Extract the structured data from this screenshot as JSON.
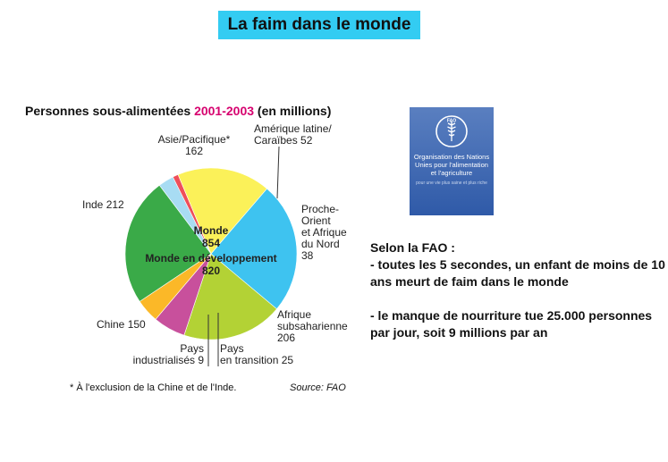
{
  "slide": {
    "title": "La faim dans le monde"
  },
  "chart_data": {
    "type": "pie",
    "title_prefix": "Personnes sous-alimentées ",
    "title_years": "2001-2003",
    "title_suffix": " (en millions)",
    "center": {
      "world_label": "Monde",
      "world_value": 854,
      "developing_label": "Monde en développement",
      "developing_value": 820
    },
    "slices": [
      {
        "label_lines": [
          "Asie/Pacifique*",
          "162"
        ],
        "value": 162,
        "color": "#b3d235"
      },
      {
        "label_lines": [
          "Amérique latine/",
          "Caraïbes 52"
        ],
        "value": 52,
        "color": "#c8509c"
      },
      {
        "label_lines": [
          "Proche-",
          "Orient",
          "et Afrique",
          "du Nord",
          "38"
        ],
        "value": 38,
        "color": "#fbb828"
      },
      {
        "label_lines": [
          "Afrique",
          "subsaharienne",
          "206"
        ],
        "value": 206,
        "color": "#3aaa48"
      },
      {
        "label_lines": [
          "Pays",
          "en transition 25"
        ],
        "value": 25,
        "color": "#a8dcf3"
      },
      {
        "label_lines": [
          "Pays",
          "industrialisés 9"
        ],
        "value": 9,
        "color": "#ef4f5a"
      },
      {
        "label_lines": [
          "Chine 150"
        ],
        "value": 150,
        "color": "#fbf159"
      },
      {
        "label_lines": [
          "Inde 212"
        ],
        "value": 212,
        "color": "#3ec3f0"
      }
    ],
    "footnote": "* À l'exclusion de la Chine et de l'Inde.",
    "source": "Source: FAO"
  },
  "fao": {
    "org_name": "Organisation des Nations Unies pour l'alimentation et l'agriculture",
    "motto": "pour une vie plus saine et plus riche",
    "logo_text": "FAO"
  },
  "facts": {
    "heading": "Selon la FAO :",
    "line1": "- toutes les 5 secondes, un enfant de moins de 10 ans meurt de faim dans le monde",
    "line2": "- le manque de nourriture tue 25.000 personnes par jour, soit 9 millions par an"
  }
}
